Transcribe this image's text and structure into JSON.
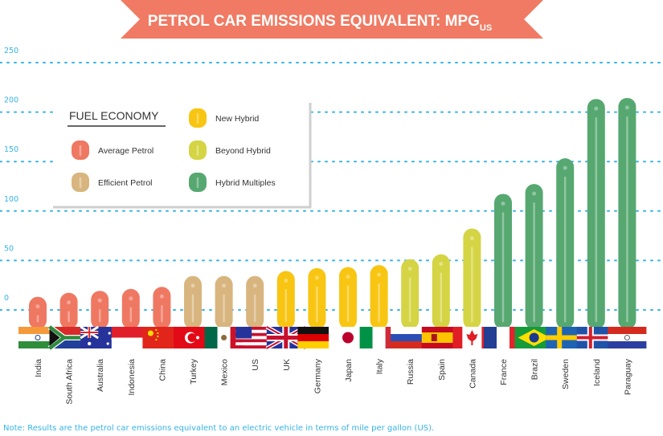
{
  "chart_data": {
    "type": "bar",
    "title": "PETROL CAR EMISSIONS EQUIVALENT: MPG",
    "title_subscript": "US",
    "ylim": [
      0,
      250
    ],
    "yticks": [
      0,
      50,
      100,
      150,
      200,
      250
    ],
    "grid": true,
    "legend_title": "FUEL ECONOMY",
    "legend": [
      {
        "key": "average",
        "label": "Average Petrol",
        "color": "#ef7862"
      },
      {
        "key": "efficient",
        "label": "Efficient Petrol",
        "color": "#d8b57f"
      },
      {
        "key": "new",
        "label": "New Hybrid",
        "color": "#f8c512"
      },
      {
        "key": "beyond",
        "label": "Beyond Hybrid",
        "color": "#d5d444"
      },
      {
        "key": "multiples",
        "label": "Hybrid Multiples",
        "color": "#56a870"
      }
    ],
    "categories": [
      "India",
      "South Africa",
      "Australia",
      "Indonesia",
      "China",
      "Turkey",
      "Mexico",
      "US",
      "UK",
      "Germany",
      "Japan",
      "Italy",
      "Russia",
      "Spain",
      "Canada",
      "France",
      "Brazil",
      "Sweden",
      "Iceland",
      "Paraguay"
    ],
    "values": [
      19,
      23,
      25,
      27,
      29,
      40,
      40,
      40,
      45,
      48,
      49,
      51,
      57,
      62,
      88,
      123,
      133,
      159,
      219,
      220
    ],
    "groups": [
      "average",
      "average",
      "average",
      "average",
      "average",
      "efficient",
      "efficient",
      "efficient",
      "new",
      "new",
      "new",
      "new",
      "beyond",
      "beyond",
      "beyond",
      "multiples",
      "multiples",
      "multiples",
      "multiples",
      "multiples"
    ],
    "flags": [
      "india-flag",
      "south-africa-flag",
      "australia-flag",
      "indonesia-flag",
      "china-flag",
      "turkey-flag",
      "mexico-flag",
      "us-flag",
      "uk-flag",
      "germany-flag",
      "japan-flag",
      "italy-flag",
      "russia-flag",
      "spain-flag",
      "canada-flag",
      "france-flag",
      "brazil-flag",
      "sweden-flag",
      "iceland-flag",
      "paraguay-flag"
    ]
  },
  "colors": {
    "banner": "#f07a63",
    "axis_text": "#36b3e6",
    "grid": "#36b3e6"
  },
  "note": "Note: Results are the petrol car emissions equivalent to an electric vehicle in terms of mile per gallon (US)."
}
